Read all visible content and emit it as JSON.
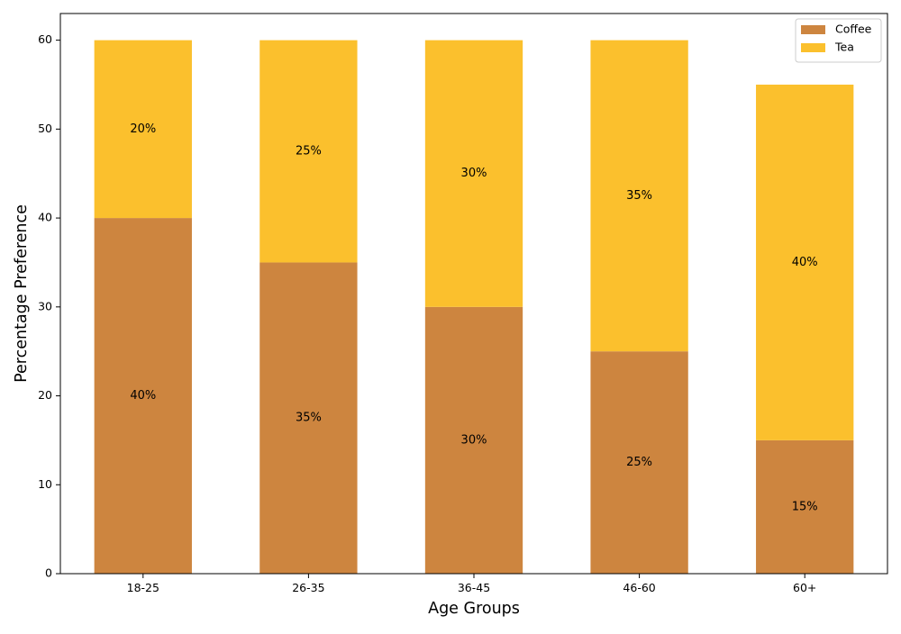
{
  "chart_data": {
    "type": "bar",
    "stacked": true,
    "title": "",
    "xlabel": "Age Groups",
    "ylabel": "Percentage Preference",
    "categories": [
      "18-25",
      "26-35",
      "36-45",
      "46-60",
      "60+"
    ],
    "series": [
      {
        "name": "Coffee",
        "color": "#cd853f",
        "values": [
          40,
          35,
          30,
          25,
          15
        ],
        "labels": [
          "40%",
          "35%",
          "30%",
          "25%",
          "15%"
        ]
      },
      {
        "name": "Tea",
        "color": "#fbc02d",
        "values": [
          20,
          25,
          30,
          35,
          40
        ],
        "labels": [
          "20%",
          "25%",
          "30%",
          "35%",
          "40%"
        ]
      }
    ],
    "ylim": [
      0,
      63
    ],
    "yticks": [
      "0",
      "10",
      "20",
      "30",
      "40",
      "50",
      "60"
    ],
    "grid": false,
    "legend_position": "top-right"
  }
}
